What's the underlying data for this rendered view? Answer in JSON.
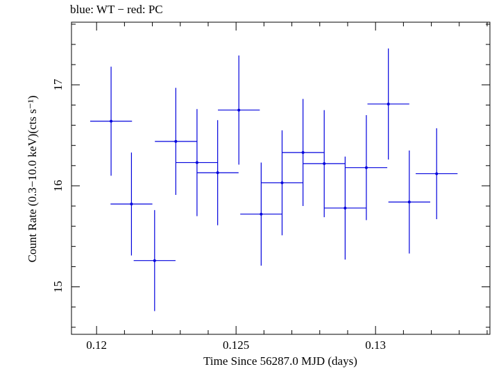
{
  "chart_data": {
    "type": "scatter",
    "title": "blue: WT − red: PC",
    "xlabel": "Time Since 56287.0 MJD (days)",
    "ylabel": "Count Rate (0.3−10.0 keV)(cts s⁻¹)",
    "xlim": [
      0.1191,
      0.1341
    ],
    "ylim": [
      14.53,
      17.62
    ],
    "x_ticks": [
      0.12,
      0.125,
      0.13
    ],
    "x_tick_labels": [
      "0.12",
      "0.125",
      "0.13"
    ],
    "y_ticks": [
      15,
      16,
      17
    ],
    "y_tick_labels": [
      "15",
      "16",
      "17"
    ],
    "grid": false,
    "series": [
      {
        "color": "#0000dd",
        "points": [
          {
            "x": 0.12052,
            "y": 16.64,
            "xerr": 0.00075,
            "yerr": 0.54
          },
          {
            "x": 0.12125,
            "y": 15.82,
            "xerr": 0.00075,
            "yerr": 0.51
          },
          {
            "x": 0.12208,
            "y": 15.26,
            "xerr": 0.00075,
            "yerr": 0.5
          },
          {
            "x": 0.12284,
            "y": 16.44,
            "xerr": 0.00075,
            "yerr": 0.53
          },
          {
            "x": 0.1236,
            "y": 16.23,
            "xerr": 0.00075,
            "yerr": 0.53
          },
          {
            "x": 0.12434,
            "y": 16.13,
            "xerr": 0.00075,
            "yerr": 0.52
          },
          {
            "x": 0.1251,
            "y": 16.75,
            "xerr": 0.00075,
            "yerr": 0.54
          },
          {
            "x": 0.1259,
            "y": 15.72,
            "xerr": 0.00075,
            "yerr": 0.51
          },
          {
            "x": 0.12665,
            "y": 16.03,
            "xerr": 0.00075,
            "yerr": 0.52
          },
          {
            "x": 0.1274,
            "y": 16.33,
            "xerr": 0.00075,
            "yerr": 0.53
          },
          {
            "x": 0.12816,
            "y": 16.22,
            "xerr": 0.00075,
            "yerr": 0.53
          },
          {
            "x": 0.12891,
            "y": 15.78,
            "xerr": 0.00075,
            "yerr": 0.51
          },
          {
            "x": 0.12967,
            "y": 16.18,
            "xerr": 0.00075,
            "yerr": 0.52
          },
          {
            "x": 0.13046,
            "y": 16.81,
            "xerr": 0.00075,
            "yerr": 0.55
          },
          {
            "x": 0.13121,
            "y": 15.84,
            "xerr": 0.00075,
            "yerr": 0.51
          },
          {
            "x": 0.13219,
            "y": 16.12,
            "xerr": 0.00075,
            "yerr": 0.45
          }
        ]
      }
    ]
  }
}
